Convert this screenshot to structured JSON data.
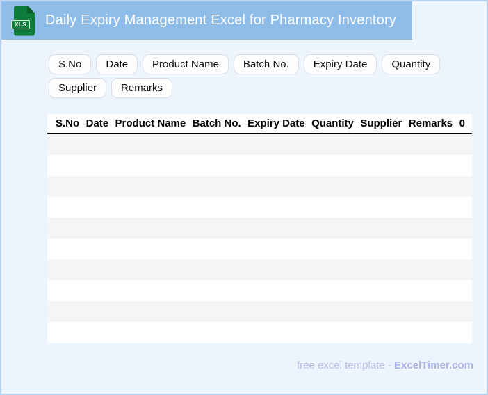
{
  "header": {
    "title": "Daily Expiry Management Excel for Pharmacy Inventory",
    "file_icon_label": "XLS"
  },
  "field_chips": [
    "S.No",
    "Date",
    "Product Name",
    "Batch No.",
    "Expiry Date",
    "Quantity",
    "Supplier",
    "Remarks"
  ],
  "table": {
    "headers": [
      "S.No",
      "Date",
      "Product Name",
      "Batch No.",
      "Expiry Date",
      "Quantity",
      "Supplier",
      "Remarks",
      "0"
    ],
    "row_count": 10,
    "rows": []
  },
  "footer": {
    "text": "free excel template -",
    "brand": "ExcelTimer.com"
  },
  "colors": {
    "header_bg": "#8fbde9",
    "page_bg": "#eef4fd",
    "page_border": "#b9d5f1",
    "icon_green": "#0e7c3a",
    "icon_fold_green": "#0a5c2b",
    "row_stripe": "#f5f5f5",
    "row_alt": "#ffffff",
    "table_divider": "#000000",
    "footer_text": "#b7c2e9",
    "footer_brand": "#a6b3e4"
  }
}
